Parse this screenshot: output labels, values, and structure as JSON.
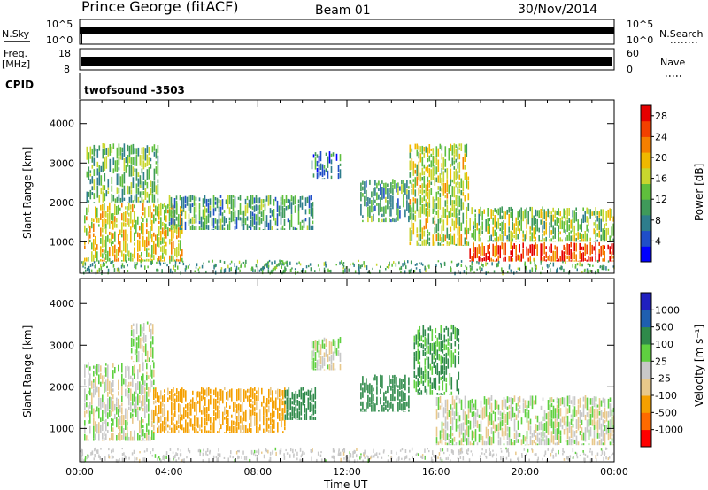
{
  "header": {
    "station": "Prince George (fitACF)",
    "beam": "Beam 01",
    "date": "30/Nov/2014"
  },
  "noise_panel": {
    "left_label": "N.Sky",
    "right_label": "N.Search",
    "tick_top": "10^5",
    "tick_bottom": "10^0"
  },
  "freq_panel": {
    "left_label_1": "Freq.",
    "left_label_2": "[MHz]",
    "right_label": "Nave",
    "left_tick_top": "18",
    "left_tick_bottom": "8",
    "right_tick_top": "60",
    "right_tick_bottom": "0"
  },
  "cpid": {
    "label": "CPID",
    "value": "twofsound -3503"
  },
  "colors": {
    "power": [
      "#0000ff",
      "#1f4ec8",
      "#2e7d8c",
      "#3f9a5a",
      "#5fbf3c",
      "#c8d62e",
      "#f0b800",
      "#f57f00",
      "#f24000",
      "#e60000"
    ],
    "velocity": [
      "#ff0000",
      "#ff6a00",
      "#f5a000",
      "#e8c88a",
      "#c8c8c8",
      "#5fd040",
      "#2f8a4a",
      "#1f5fb0",
      "#2020c0"
    ]
  },
  "chart_data": [
    {
      "type": "heatmap",
      "name": "power",
      "ylabel": "Slant Range [km]",
      "yticks": [
        "1000",
        "2000",
        "3000",
        "4000"
      ],
      "ylim": [
        200,
        4600
      ],
      "xlim": [
        0,
        24
      ],
      "colorbar": {
        "label": "Power [dB]",
        "ticks": [
          "4",
          "8",
          "12",
          "16",
          "20",
          "24",
          "28"
        ],
        "range": [
          0,
          30
        ]
      },
      "regions": [
        {
          "t": [
            0.2,
            4.6
          ],
          "r": [
            500,
            2000
          ],
          "v": 18
        },
        {
          "t": [
            0.3,
            3.5
          ],
          "r": [
            2000,
            3500
          ],
          "v": 12
        },
        {
          "t": [
            4.0,
            10.5
          ],
          "r": [
            1300,
            2200
          ],
          "v": 10
        },
        {
          "t": [
            10.4,
            11.7
          ],
          "r": [
            2600,
            3300
          ],
          "v": 8
        },
        {
          "t": [
            12.6,
            14.8
          ],
          "r": [
            1500,
            2600
          ],
          "v": 10
        },
        {
          "t": [
            14.8,
            17.5
          ],
          "r": [
            900,
            3500
          ],
          "v": 16
        },
        {
          "t": [
            17.5,
            24
          ],
          "r": [
            500,
            1000
          ],
          "v": 26
        },
        {
          "t": [
            17.5,
            24
          ],
          "r": [
            1000,
            1900
          ],
          "v": 14
        }
      ]
    },
    {
      "type": "heatmap",
      "name": "velocity",
      "ylabel": "Slant Range [km]",
      "yticks": [
        "1000",
        "2000",
        "3000",
        "4000"
      ],
      "ylim": [
        200,
        4600
      ],
      "xlim": [
        0,
        24
      ],
      "xticks": [
        "00:00",
        "04:00",
        "08:00",
        "12:00",
        "16:00",
        "20:00",
        "00:00"
      ],
      "xlabel": "Time UT",
      "colorbar": {
        "label": "Velocity [m s⁻¹]",
        "ticks": [
          "1000",
          "500",
          "100",
          "25",
          "-25",
          "-100",
          "-500",
          "-1000"
        ]
      },
      "regions": [
        {
          "t": [
            0.2,
            3.3
          ],
          "r": [
            700,
            2600
          ],
          "v": 0
        },
        {
          "t": [
            2.3,
            3.3
          ],
          "r": [
            2600,
            3600
          ],
          "v": 0
        },
        {
          "t": [
            3.3,
            9.2
          ],
          "r": [
            900,
            2000
          ],
          "v": -150
        },
        {
          "t": [
            9.2,
            10.6
          ],
          "r": [
            1200,
            2000
          ],
          "v": 300
        },
        {
          "t": [
            10.4,
            11.7
          ],
          "r": [
            2400,
            3200
          ],
          "v": 0
        },
        {
          "t": [
            12.6,
            14.8
          ],
          "r": [
            1400,
            2300
          ],
          "v": 300
        },
        {
          "t": [
            15.0,
            17.0
          ],
          "r": [
            1800,
            3500
          ],
          "v": 120
        },
        {
          "t": [
            16.0,
            24.0
          ],
          "r": [
            600,
            1800
          ],
          "v": 0
        }
      ]
    }
  ]
}
